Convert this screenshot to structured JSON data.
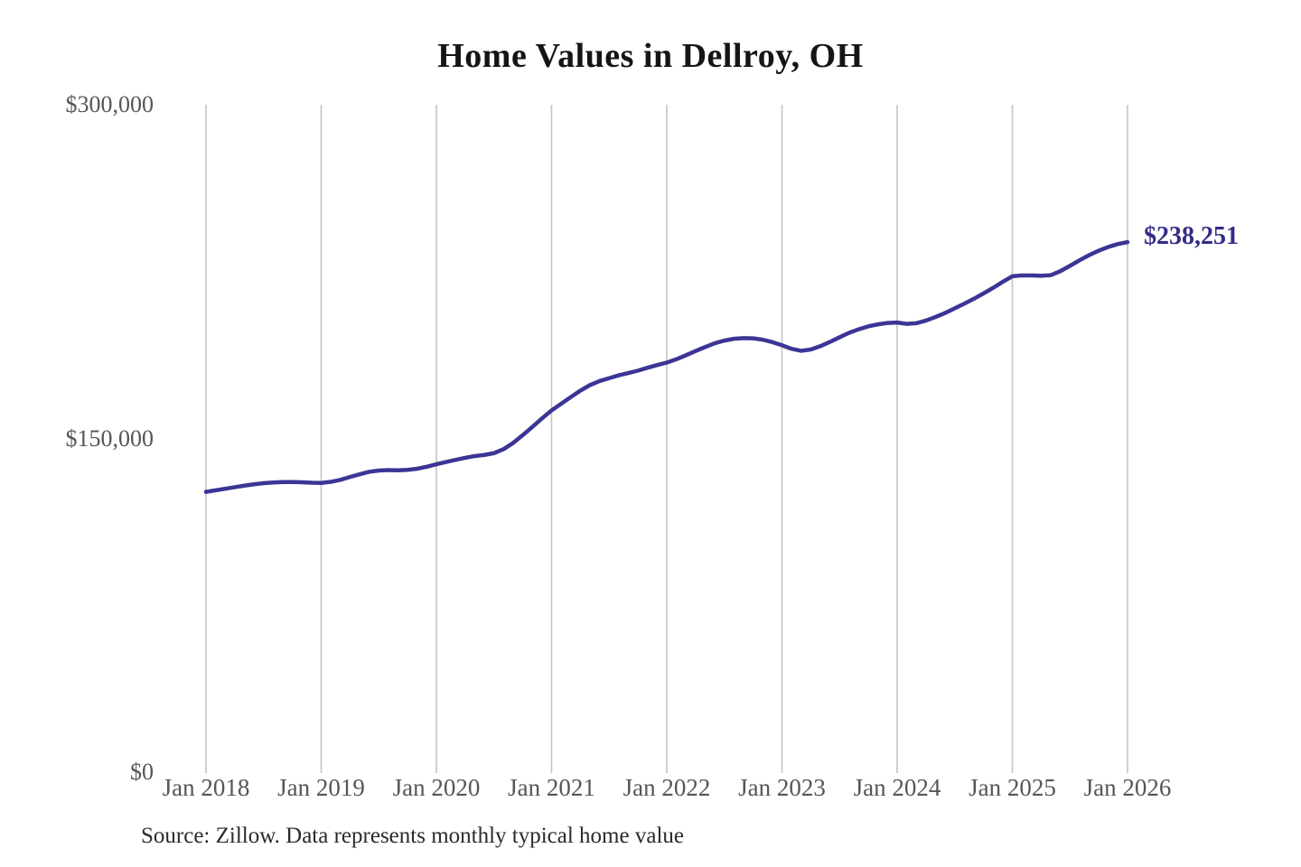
{
  "chart": {
    "title": "Home Values in Dellroy, OH",
    "end_label": "$238,251",
    "source_note": "Source: Zillow. Data represents monthly typical home value",
    "colors": {
      "line": "#3b3596",
      "end_label": "#332d87",
      "gridline": "#c4c4c4",
      "title": "#151515",
      "tick_label": "#565656",
      "source": "#2b2b2b",
      "background": "#ffffff"
    }
  },
  "chart_data": {
    "type": "line",
    "title": "Home Values in Dellroy, OH",
    "xlabel": "",
    "ylabel": "",
    "ylim": [
      0,
      300000
    ],
    "y_tick_values": [
      0,
      150000,
      300000
    ],
    "y_tick_labels": [
      "$0",
      "$150,000",
      "$300,000"
    ],
    "x_tick_labels": [
      "Jan 2018",
      "Jan 2019",
      "Jan 2020",
      "Jan 2021",
      "Jan 2022",
      "Jan 2023",
      "Jan 2024",
      "Jan 2025",
      "Jan 2026"
    ],
    "x_unit": "month",
    "x_start": "Jan 2018",
    "x_end": "Jan 2026",
    "grid": "vertical-only",
    "legend": "none",
    "final_value": 238251,
    "annotation": "$238,251",
    "series": [
      {
        "name": "Monthly typical home value",
        "values": [
          126000,
          126700,
          127400,
          128100,
          128800,
          129400,
          129900,
          130200,
          130400,
          130400,
          130300,
          130100,
          130000,
          130500,
          131400,
          132700,
          133900,
          135000,
          135600,
          135800,
          135700,
          135900,
          136400,
          137300,
          138400,
          139400,
          140400,
          141300,
          142100,
          142600,
          143400,
          145200,
          148000,
          151500,
          155200,
          159000,
          162600,
          165600,
          168600,
          171500,
          174000,
          175800,
          177100,
          178400,
          179400,
          180500,
          181800,
          183000,
          184100,
          185600,
          187400,
          189300,
          191100,
          192800,
          194000,
          194800,
          195100,
          195000,
          194400,
          193300,
          191900,
          190300,
          189400,
          190000,
          191500,
          193400,
          195500,
          197500,
          199100,
          200400,
          201300,
          201900,
          202100,
          201500,
          201800,
          203000,
          204600,
          206400,
          208500,
          210600,
          212800,
          215200,
          217700,
          220400,
          222900,
          223300,
          223300,
          223100,
          223400,
          225200,
          227600,
          230100,
          232400,
          234400,
          236100,
          237400,
          238251
        ]
      }
    ]
  }
}
